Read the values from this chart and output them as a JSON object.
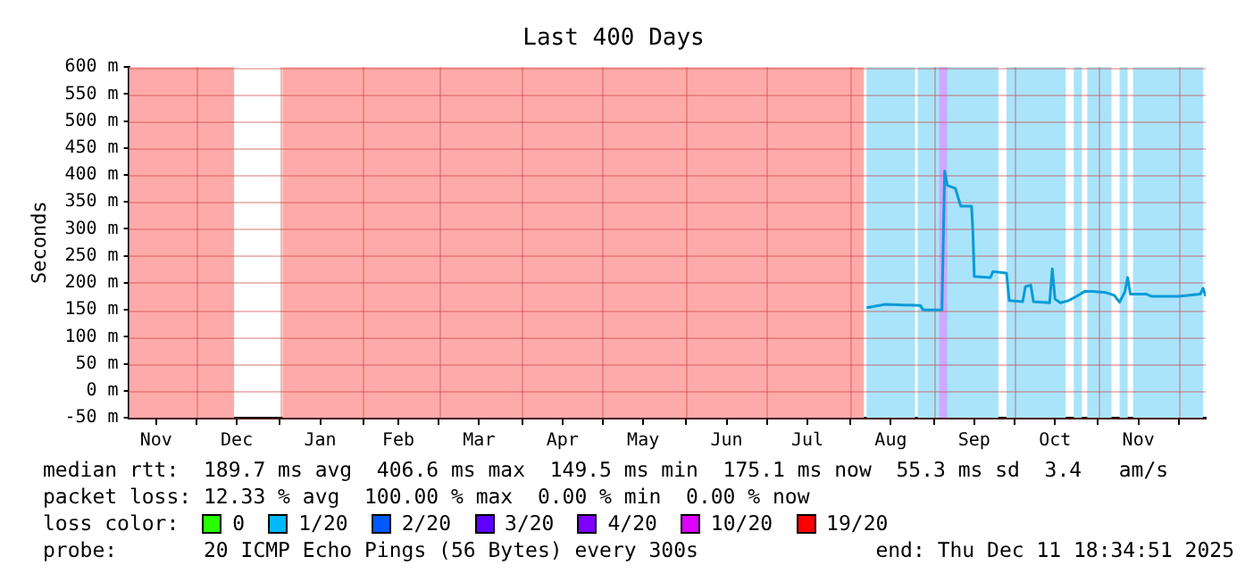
{
  "chart_data": {
    "type": "line",
    "title": "Last 400 Days",
    "ylabel": "Seconds",
    "legend_title": "loss color:",
    "legend": "bottom",
    "grid": true,
    "marker": "none",
    "line_style": "solid",
    "xlim": [
      "2024-11-06",
      "2025-12-11"
    ],
    "xticks": [
      {
        "value": "2024-11-16",
        "label": "Nov"
      },
      {
        "value": "2024-12-01",
        "label": null
      },
      {
        "value": "2024-12-16",
        "label": "Dec"
      },
      {
        "value": "2025-01-01",
        "label": null
      },
      {
        "value": "2025-01-16",
        "label": "Jan"
      },
      {
        "value": "2025-02-01",
        "label": null
      },
      {
        "value": "2025-02-14",
        "label": "Feb"
      },
      {
        "value": "2025-03-01",
        "label": null
      },
      {
        "value": "2025-03-16",
        "label": "Mar"
      },
      {
        "value": "2025-04-01",
        "label": null
      },
      {
        "value": "2025-04-16",
        "label": "Apr"
      },
      {
        "value": "2025-05-01",
        "label": null
      },
      {
        "value": "2025-05-16",
        "label": "May"
      },
      {
        "value": "2025-06-01",
        "label": null
      },
      {
        "value": "2025-06-16",
        "label": "Jun"
      },
      {
        "value": "2025-07-01",
        "label": null
      },
      {
        "value": "2025-07-16",
        "label": "Jul"
      },
      {
        "value": "2025-08-01",
        "label": null
      },
      {
        "value": "2025-08-16",
        "label": "Aug"
      },
      {
        "value": "2025-09-01",
        "label": null
      },
      {
        "value": "2025-09-16",
        "label": "Sep"
      },
      {
        "value": "2025-10-01",
        "label": null
      },
      {
        "value": "2025-10-16",
        "label": "Oct"
      },
      {
        "value": "2025-11-01",
        "label": null
      },
      {
        "value": "2025-11-16",
        "label": "Nov"
      },
      {
        "value": "2025-12-01",
        "label": null
      }
    ],
    "ylim": [
      -50,
      600
    ],
    "yticks": [
      {
        "value": -50,
        "label": "-50 m"
      },
      {
        "value": 0,
        "label": "0 m"
      },
      {
        "value": 50,
        "label": "50 m"
      },
      {
        "value": 100,
        "label": "100 m"
      },
      {
        "value": 150,
        "label": "150 m"
      },
      {
        "value": 200,
        "label": "200 m"
      },
      {
        "value": 250,
        "label": "250 m"
      },
      {
        "value": 300,
        "label": "300 m"
      },
      {
        "value": 350,
        "label": "350 m"
      },
      {
        "value": 400,
        "label": "400 m"
      },
      {
        "value": 450,
        "label": "450 m"
      },
      {
        "value": 500,
        "label": "500 m"
      },
      {
        "value": 550,
        "label": "550 m"
      },
      {
        "value": 600,
        "label": "600 m"
      }
    ],
    "bands": [
      {
        "axis": "x",
        "from": "2024-11-06",
        "to": "2024-12-15",
        "color": "#ffaaaa"
      },
      {
        "axis": "x",
        "from": "2025-01-02",
        "to": "2025-08-06",
        "color": "#ffaaaa"
      },
      {
        "axis": "x",
        "from": "2025-08-07",
        "to": "2025-08-25",
        "color": "#aae4fa"
      },
      {
        "axis": "x",
        "from": "2025-08-26",
        "to": "2025-09-25",
        "color": "#aae4fa"
      },
      {
        "axis": "x",
        "from": "2025-09-03",
        "to": "2025-09-06",
        "color": "#ccaaff"
      },
      {
        "axis": "x",
        "from": "2025-09-28",
        "to": "2025-10-20",
        "color": "#aae4fa"
      },
      {
        "axis": "x",
        "from": "2025-10-23",
        "to": "2025-10-26",
        "color": "#aae4fa"
      },
      {
        "axis": "x",
        "from": "2025-10-28",
        "to": "2025-11-06",
        "color": "#aae4fa"
      },
      {
        "axis": "x",
        "from": "2025-11-09",
        "to": "2025-11-12",
        "color": "#aae4fa"
      },
      {
        "axis": "x",
        "from": "2025-11-14",
        "to": "2025-12-10",
        "color": "#aae4fa"
      }
    ],
    "series": [
      {
        "color": "#0a9ad8",
        "x": [
          "2025-08-07",
          "2025-08-14",
          "2025-08-27",
          "2025-08-28",
          "2025-09-04",
          "2025-09-05",
          "2025-09-06",
          "2025-09-09",
          "2025-09-11",
          "2025-09-15",
          "2025-09-15T12:00",
          "2025-09-16",
          "2025-09-22",
          "2025-09-23",
          "2025-09-28",
          "2025-09-29",
          "2025-10-04",
          "2025-10-05",
          "2025-10-07",
          "2025-10-08",
          "2025-10-14",
          "2025-10-15",
          "2025-10-16",
          "2025-10-18",
          "2025-10-21",
          "2025-10-24",
          "2025-10-27",
          "2025-10-30",
          "2025-11-04",
          "2025-11-07",
          "2025-11-09",
          "2025-11-11",
          "2025-11-12",
          "2025-11-13",
          "2025-11-19",
          "2025-11-21",
          "2025-12-01",
          "2025-12-09",
          "2025-12-10",
          "2025-12-11"
        ],
        "values": [
          154,
          160,
          158,
          150,
          150,
          407,
          381,
          375,
          342,
          342,
          295,
          212,
          210,
          221,
          218,
          167,
          165,
          193,
          196,
          165,
          163,
          226,
          170,
          163,
          167,
          175,
          184,
          184,
          182,
          177,
          164,
          184,
          210,
          179,
          179,
          175,
          175,
          179,
          190,
          175
        ]
      },
      {
        "name": "0",
        "color": "#26ff00"
      },
      {
        "name": "1/20",
        "color": "#00b8ff"
      },
      {
        "name": "2/20",
        "color": "#0059ff"
      },
      {
        "name": "3/20",
        "color": "#5e00ff"
      },
      {
        "name": "4/20",
        "color": "#7e00ff"
      },
      {
        "name": "10/20",
        "color": "#dd00ff"
      },
      {
        "name": "19/20",
        "color": "#ff0000"
      }
    ],
    "annotations": [
      "median rtt:  189.7 ms avg  406.6 ms max  149.5 ms min  175.1 ms now  55.3 ms sd  3.4   am/s",
      "packet loss: 12.33 % avg  100.00 % max  0.00 % min  0.00 % now",
      "probe:       20 ICMP Echo Pings (56 Bytes) every 300s",
      "end: Thu Dec 11 18:34:51 2025"
    ]
  }
}
